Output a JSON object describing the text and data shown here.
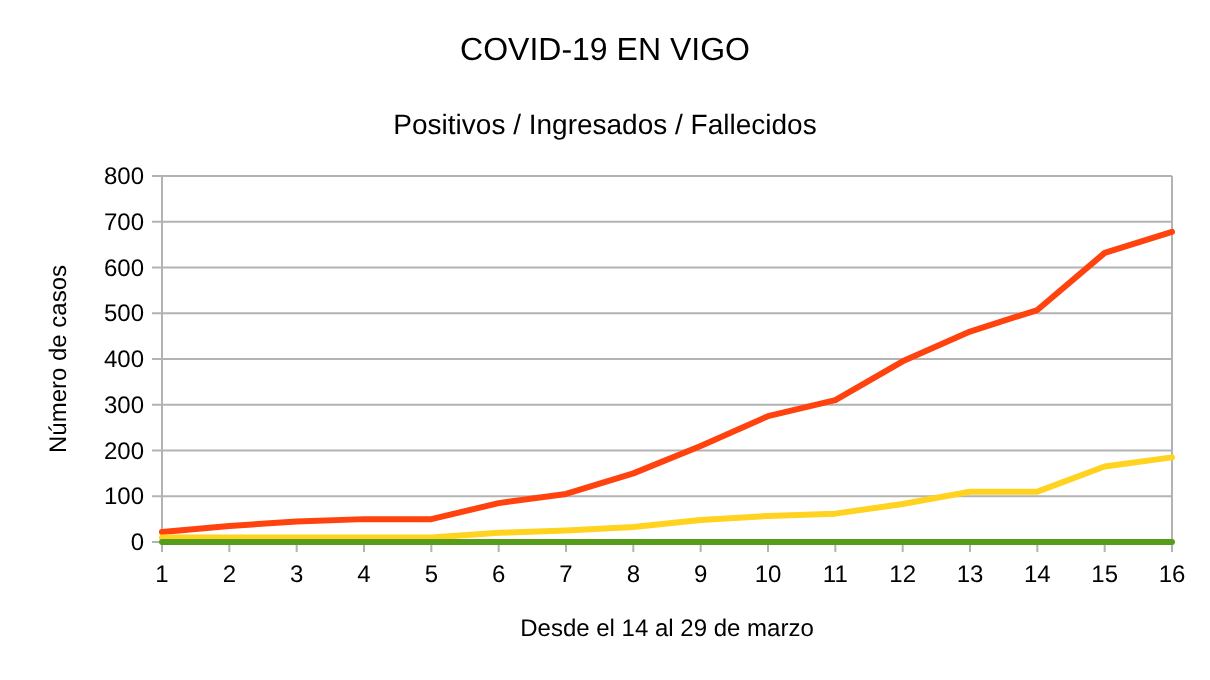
{
  "chart_data": {
    "type": "line",
    "title": "COVID-19 EN VIGO",
    "subtitle": "Positivos / Ingresados / Fallecidos",
    "xlabel": "Desde el 14 al 29 de marzo",
    "ylabel": "Número de casos",
    "x": [
      1,
      2,
      3,
      4,
      5,
      6,
      7,
      8,
      9,
      10,
      11,
      12,
      13,
      14,
      15,
      16
    ],
    "series": [
      {
        "color": "#ff420e",
        "values": [
          22,
          35,
          45,
          50,
          50,
          85,
          105,
          150,
          210,
          275,
          310,
          395,
          460,
          507,
          632,
          678
        ]
      },
      {
        "color": "#ffd320",
        "values": [
          10,
          10,
          10,
          10,
          10,
          20,
          25,
          33,
          48,
          57,
          62,
          83,
          110,
          110,
          165,
          185
        ]
      },
      {
        "color": "#579d1c",
        "values": [
          0,
          0,
          0,
          0,
          0,
          0,
          0,
          0,
          0,
          0,
          0,
          0,
          0,
          0,
          0,
          0
        ]
      }
    ],
    "xlim": [
      1,
      16
    ],
    "xticks": [
      1,
      2,
      3,
      4,
      5,
      6,
      7,
      8,
      9,
      10,
      11,
      12,
      13,
      14,
      15,
      16
    ],
    "ylim": [
      0,
      800
    ],
    "yticks": [
      0,
      100,
      200,
      300,
      400,
      500,
      600,
      700,
      800
    ],
    "grid": "y",
    "marker": "none",
    "line_style": "solid"
  }
}
